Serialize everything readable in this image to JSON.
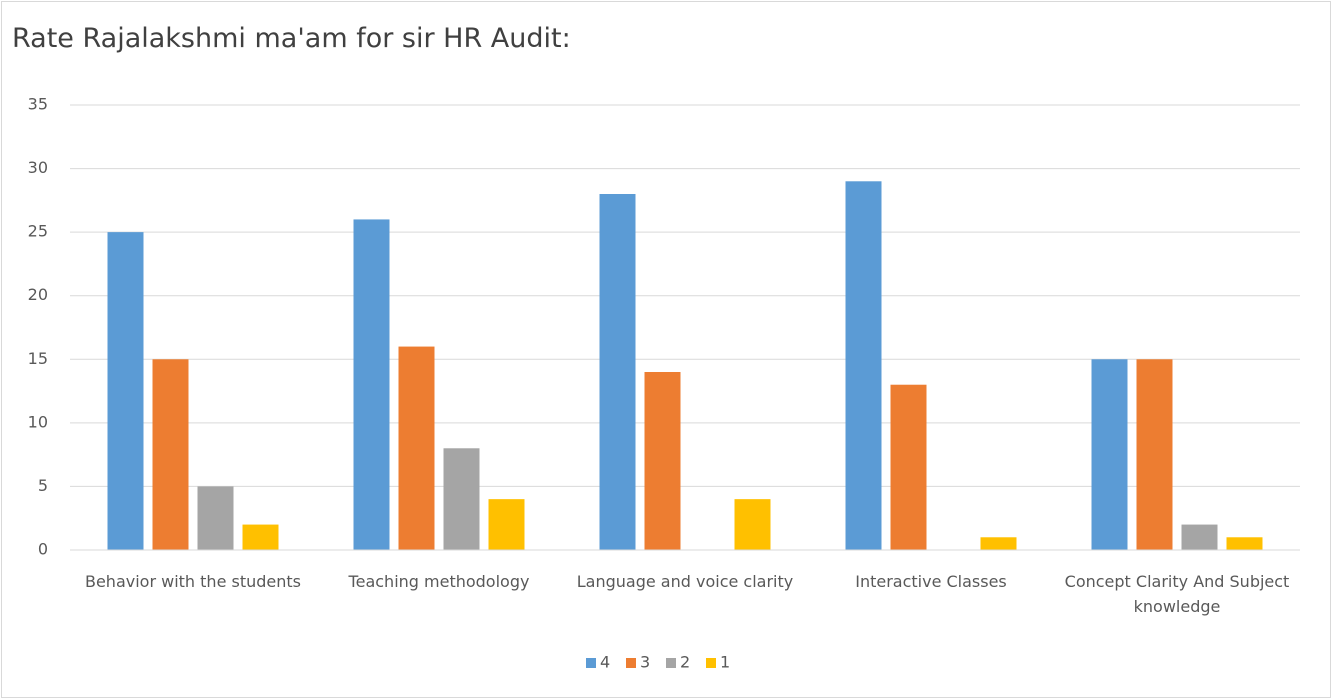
{
  "chart_data": {
    "type": "bar",
    "title": "Rate Rajalakshmi ma'am for sir HR Audit:",
    "categories": [
      "Behavior with the students",
      "Teaching methodology",
      "Language and voice clarity",
      "Interactive Classes",
      "Concept Clarity And Subject knowledge"
    ],
    "series": [
      {
        "name": "4",
        "color": "#5b9bd5",
        "values": [
          25,
          26,
          28,
          29,
          15
        ]
      },
      {
        "name": "3",
        "color": "#ed7d31",
        "values": [
          15,
          16,
          14,
          13,
          15
        ]
      },
      {
        "name": "2",
        "color": "#a5a5a5",
        "values": [
          5,
          8,
          0,
          0,
          2
        ]
      },
      {
        "name": "1",
        "color": "#ffc000",
        "values": [
          2,
          4,
          4,
          1,
          1
        ]
      }
    ],
    "ylim": [
      0,
      35
    ],
    "yticks": [
      0,
      5,
      10,
      15,
      20,
      25,
      30,
      35
    ],
    "grid": true,
    "legend": "bottom"
  }
}
